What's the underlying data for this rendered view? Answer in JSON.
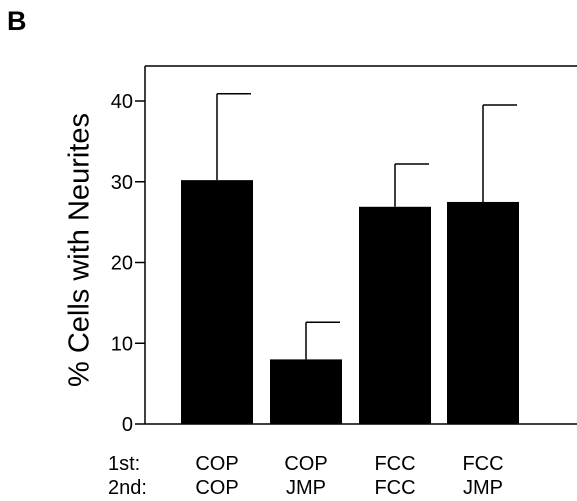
{
  "panel_letter": "B",
  "chart_data": {
    "type": "bar",
    "ylabel": "% Cells with Neurites",
    "ylim": [
      0,
      45
    ],
    "yticks": [
      0,
      10,
      20,
      30,
      40
    ],
    "row_labels": [
      "1st:",
      "2nd:"
    ],
    "categories": [
      {
        "first": "COP",
        "second": "COP"
      },
      {
        "first": "COP",
        "second": "JMP"
      },
      {
        "first": "FCC",
        "second": "FCC"
      },
      {
        "first": "FCC",
        "second": "JMP"
      }
    ],
    "values": [
      30.2,
      8.0,
      26.9,
      27.5
    ],
    "error_upper": [
      40.9,
      12.6,
      32.2,
      39.5
    ],
    "bar_color": "#000000"
  }
}
